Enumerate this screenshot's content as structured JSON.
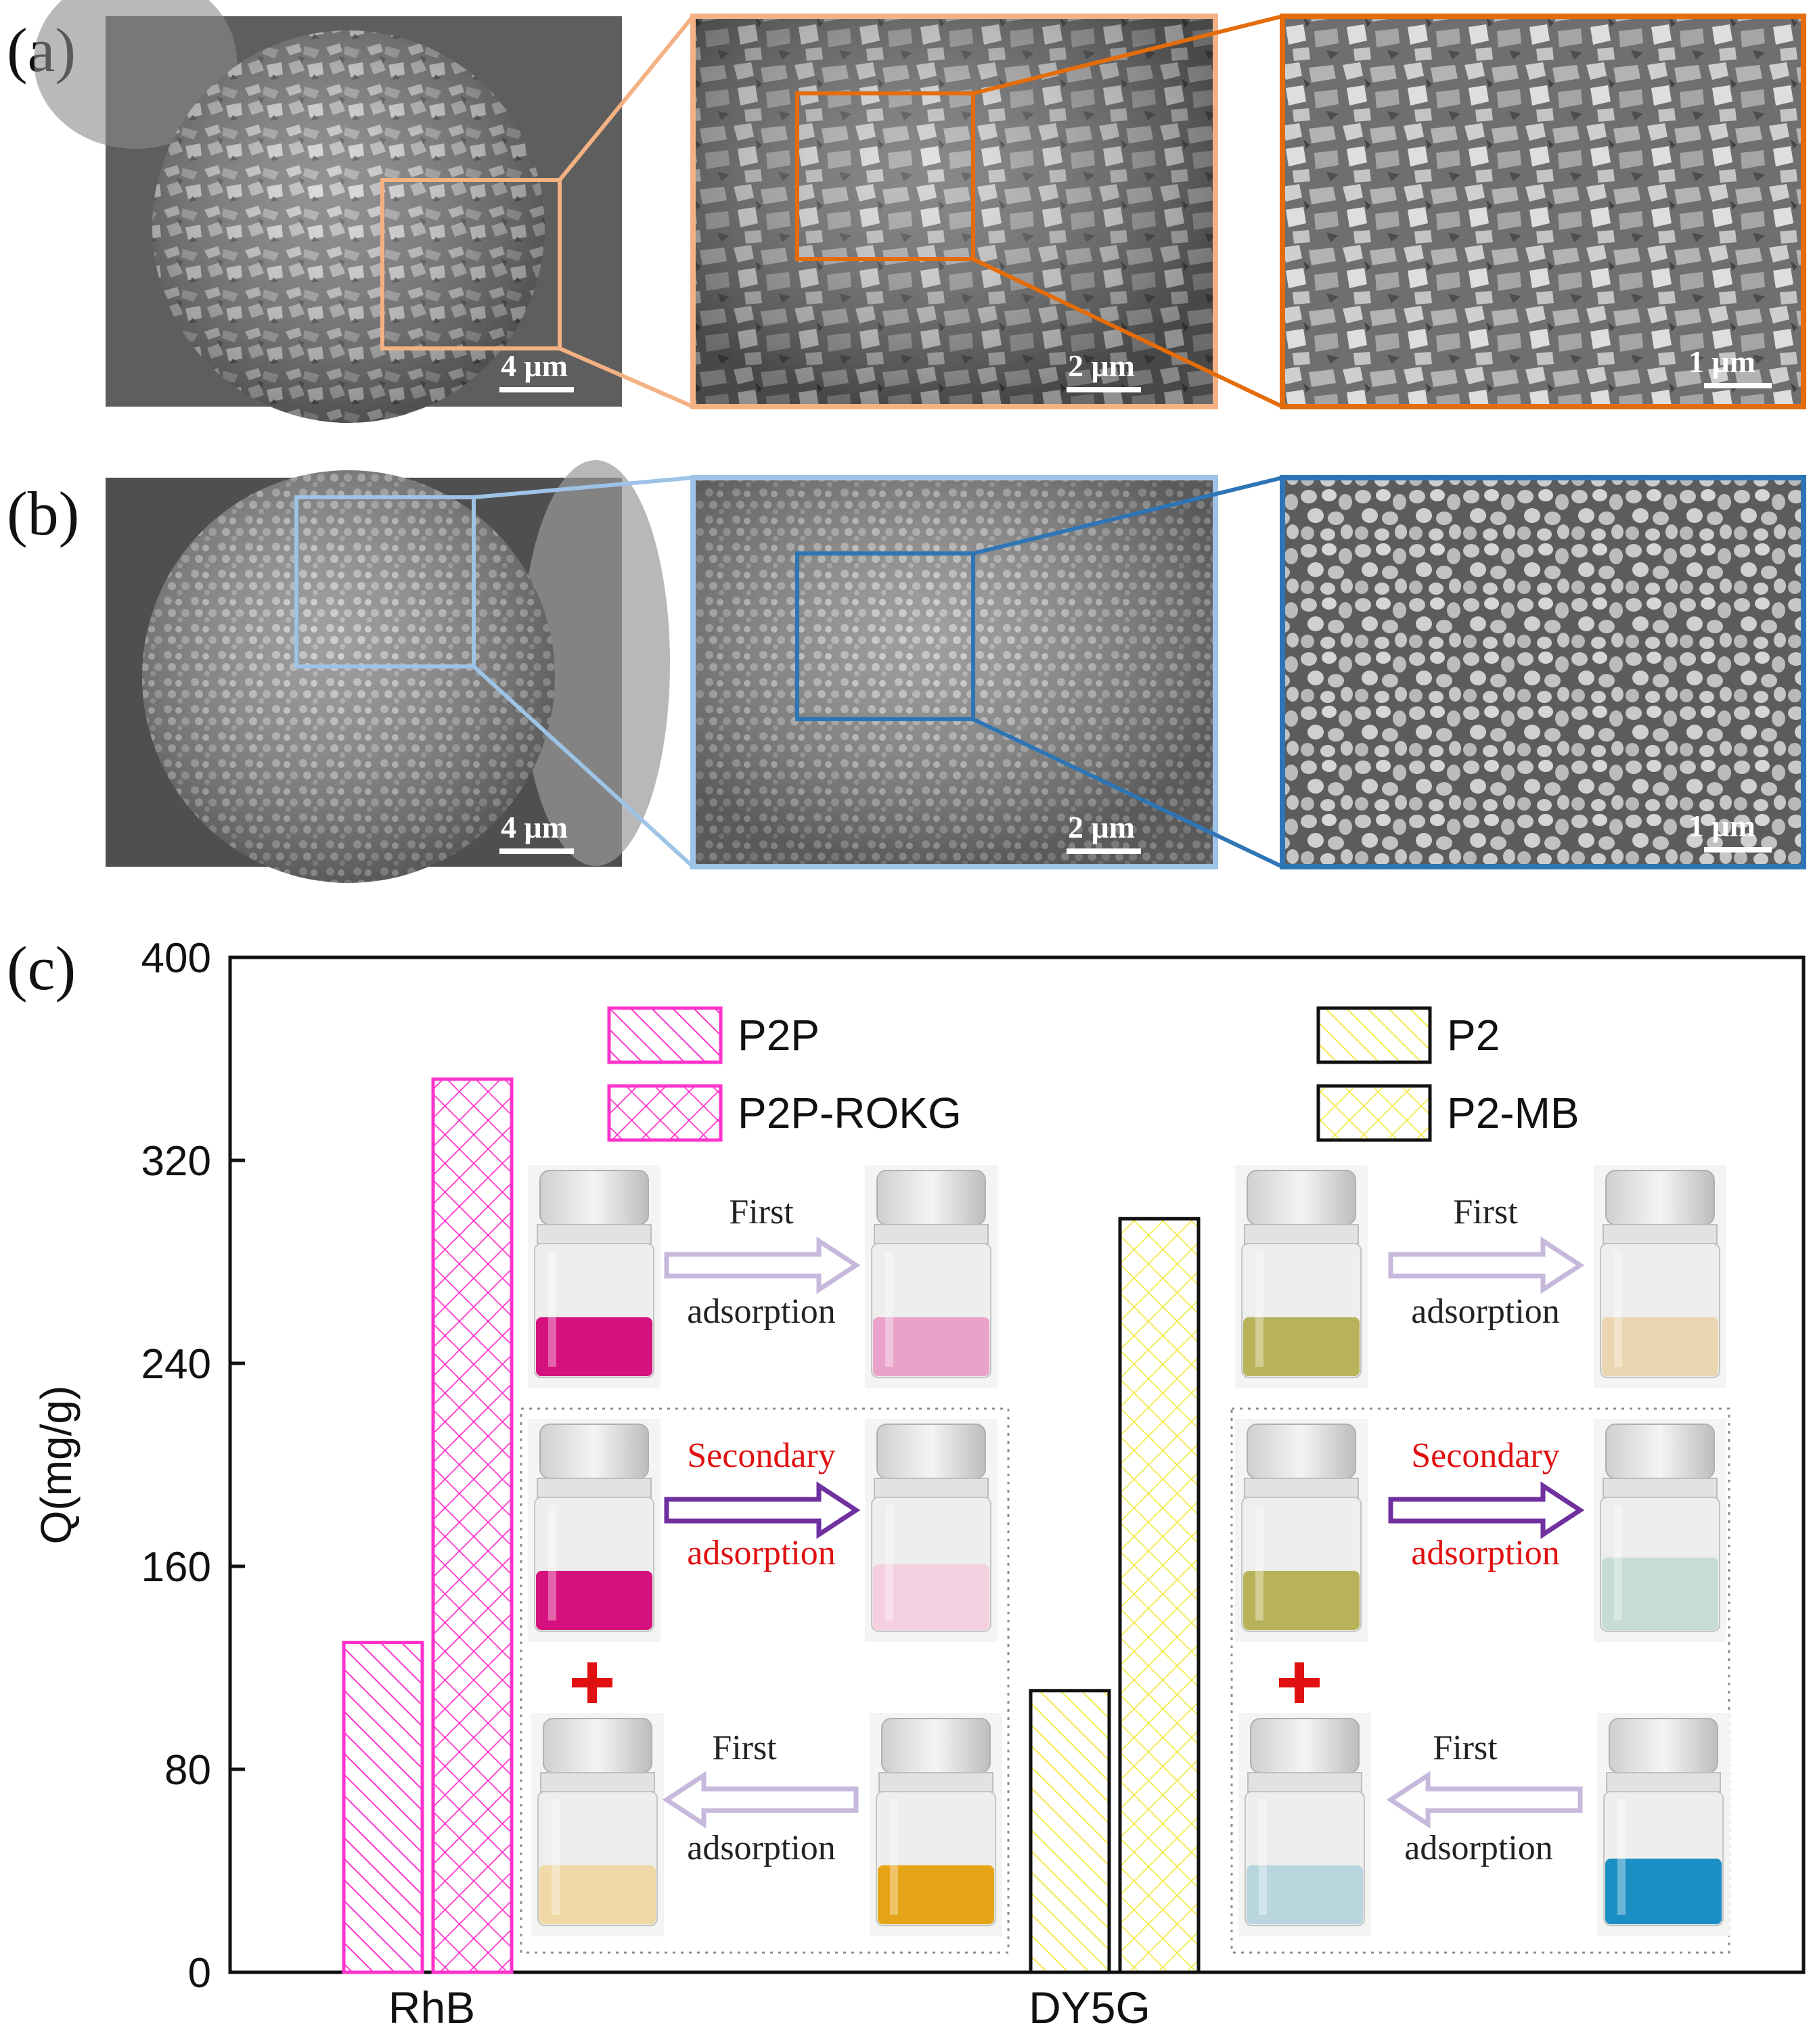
{
  "figure": {
    "panel_a": {
      "label": "(a)",
      "scale_bars": [
        "4 μm",
        "2 μm",
        "1 μm"
      ],
      "frame_colors": [
        "#f4b183",
        "#e46c0a"
      ]
    },
    "panel_b": {
      "label": "(b)",
      "scale_bars": [
        "4 μm",
        "2 μm",
        "1 μm"
      ],
      "frame_colors": [
        "#9dc3e6",
        "#2e75b6"
      ]
    },
    "panel_c": {
      "label": "(c)",
      "photo_steps": {
        "rhb": {
          "first_top": [
            "First",
            "adsorption"
          ],
          "secondary": [
            "Secondary",
            "adsorption"
          ],
          "first_bottom": [
            "First",
            "adsorption"
          ]
        },
        "dy5g": {
          "first_top": [
            "First",
            "adsorption"
          ],
          "secondary": [
            "Secondary",
            "adsorption"
          ],
          "first_bottom": [
            "First",
            "adsorption"
          ]
        }
      },
      "vial_colors": {
        "rhb_before": "#d4117e",
        "rhb_after_first": "#e9a2c9",
        "rhb_after_second": "#f3cfe0",
        "rhb_orange_before": "#e6a417",
        "rhb_orange_after": "#f0d9a6",
        "dy5g_before": "#b8b35a",
        "dy5g_after_first": "#ead6b0",
        "dy5g_after_second": "#c7dcd3",
        "mb_before": "#1a8fc4",
        "mb_after": "#b9d6df"
      }
    }
  },
  "chart_data": {
    "type": "bar",
    "ylabel": "Q(mg/g)",
    "xlabel": "",
    "ylim": [
      0,
      400
    ],
    "yticks": [
      0,
      80,
      160,
      240,
      320,
      400
    ],
    "categories": [
      "RhB",
      "DY5G"
    ],
    "series": [
      {
        "name": "P2P",
        "category": "RhB",
        "value": 130,
        "color": "#ff33cc",
        "pattern": "hatch"
      },
      {
        "name": "P2P-ROKG",
        "category": "RhB",
        "value": 352,
        "color": "#ff33cc",
        "pattern": "cross"
      },
      {
        "name": "P2",
        "category": "DY5G",
        "value": 111,
        "color": "#f5f05a",
        "pattern": "hatch"
      },
      {
        "name": "P2-MB",
        "category": "DY5G",
        "value": 297,
        "color": "#f5f05a",
        "pattern": "cross"
      }
    ],
    "legend_placement": "top",
    "grid": false
  }
}
